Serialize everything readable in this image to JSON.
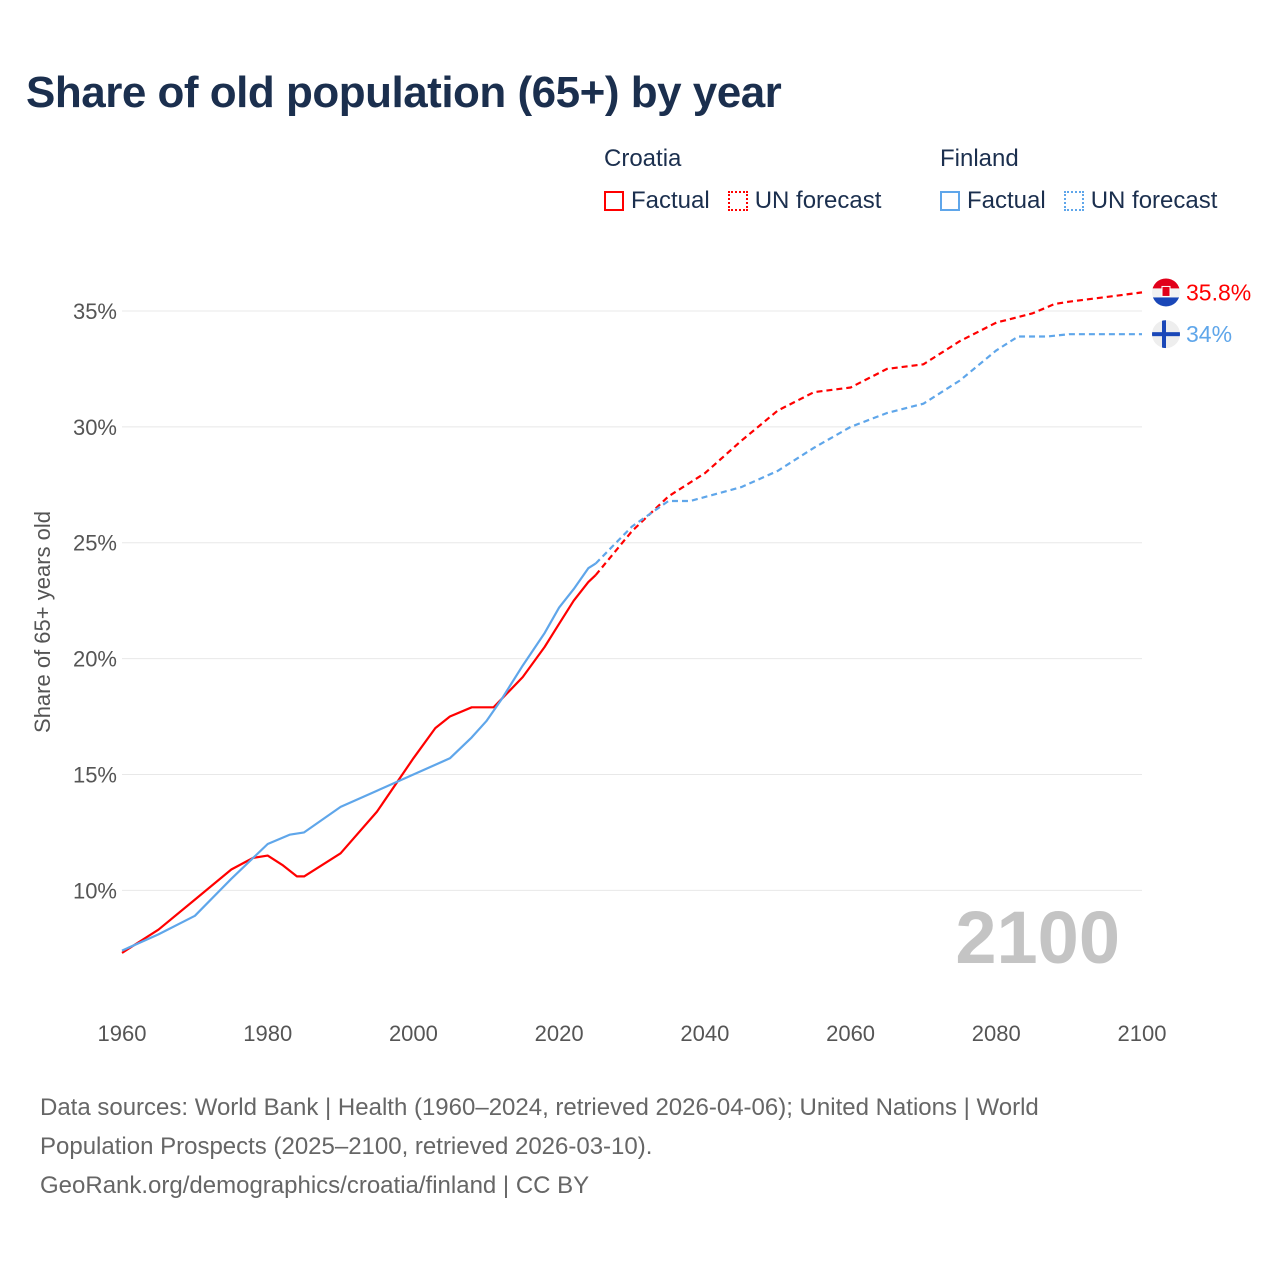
{
  "title": "Share of old population (65+) by year",
  "legend": {
    "groups": [
      {
        "name": "Croatia",
        "color": "#ff0000",
        "items": [
          {
            "label": "Factual",
            "style": "solid"
          },
          {
            "label": "UN forecast",
            "style": "dotted"
          }
        ]
      },
      {
        "name": "Finland",
        "color": "#5fa6ea",
        "items": [
          {
            "label": "Factual",
            "style": "solid"
          },
          {
            "label": "UN forecast",
            "style": "dotted"
          }
        ]
      }
    ]
  },
  "year_label": "2100",
  "footer": {
    "line1": "Data sources: World Bank | Health (1960–2024, retrieved 2026-04-06); United Nations | World",
    "line2": "Population Prospects (2025–2100, retrieved 2026-03-10).",
    "line3": "GeoRank.org/demographics/croatia/finland | CC BY"
  },
  "chart_data": {
    "type": "line",
    "title": "Share of old population (65+) by year",
    "xlabel": "",
    "ylabel": "Share of 65+ years old",
    "xlim": [
      1960,
      2100
    ],
    "ylim": [
      5.7,
      37.2
    ],
    "x_ticks": [
      "1960",
      "1980",
      "2000",
      "2020",
      "2040",
      "2060",
      "2080",
      "2100"
    ],
    "y_ticks": [
      {
        "value": 10,
        "label": "10%"
      },
      {
        "value": 15,
        "label": "15%"
      },
      {
        "value": 20,
        "label": "20%"
      },
      {
        "value": 25,
        "label": "25%"
      },
      {
        "value": 30,
        "label": "30%"
      },
      {
        "value": 35,
        "label": "35%"
      }
    ],
    "grid": true,
    "series": [
      {
        "name": "Croatia",
        "kind": "Factual",
        "color": "#ff0000",
        "dashed": false,
        "x": [
          1960,
          1965,
          1970,
          1975,
          1978,
          1980,
          1982,
          1984,
          1985,
          1990,
          1995,
          2000,
          2003,
          2005,
          2008,
          2011,
          2015,
          2018,
          2020,
          2022,
          2024,
          2025
        ],
        "y": [
          7.3,
          8.3,
          9.6,
          10.9,
          11.4,
          11.5,
          11.1,
          10.6,
          10.6,
          11.6,
          13.4,
          15.7,
          17.0,
          17.5,
          17.9,
          17.9,
          19.2,
          20.5,
          21.5,
          22.5,
          23.3,
          23.6
        ]
      },
      {
        "name": "Croatia",
        "kind": "UN forecast",
        "color": "#ff0000",
        "dashed": true,
        "x": [
          2025,
          2030,
          2035,
          2040,
          2045,
          2050,
          2055,
          2060,
          2065,
          2070,
          2075,
          2080,
          2085,
          2088,
          2090,
          2095,
          2100
        ],
        "y": [
          23.6,
          25.5,
          27.0,
          28.0,
          29.4,
          30.7,
          31.5,
          31.7,
          32.5,
          32.7,
          33.7,
          34.5,
          34.9,
          35.3,
          35.4,
          35.6,
          35.8
        ]
      },
      {
        "name": "Finland",
        "kind": "Factual",
        "color": "#5fa6ea",
        "dashed": false,
        "x": [
          1960,
          1965,
          1970,
          1975,
          1980,
          1983,
          1985,
          1990,
          1995,
          2000,
          2005,
          2008,
          2010,
          2012,
          2015,
          2018,
          2020,
          2022,
          2024,
          2025
        ],
        "y": [
          7.4,
          8.1,
          8.9,
          10.5,
          12.0,
          12.4,
          12.5,
          13.6,
          14.3,
          15.0,
          15.7,
          16.6,
          17.3,
          18.2,
          19.7,
          21.1,
          22.2,
          23.0,
          23.9,
          24.1
        ]
      },
      {
        "name": "Finland",
        "kind": "UN forecast",
        "color": "#5fa6ea",
        "dashed": true,
        "x": [
          2025,
          2030,
          2035,
          2038,
          2045,
          2050,
          2055,
          2060,
          2065,
          2070,
          2075,
          2080,
          2083,
          2087,
          2090,
          2100
        ],
        "y": [
          24.1,
          25.7,
          26.8,
          26.8,
          27.4,
          28.1,
          29.1,
          30.0,
          30.6,
          31.0,
          32.0,
          33.3,
          33.9,
          33.9,
          34.0,
          34.0
        ]
      }
    ],
    "end_labels": [
      {
        "name": "Croatia",
        "label": "35.8%",
        "value": 35.8,
        "color": "#ff0000"
      },
      {
        "name": "Finland",
        "label": "34%",
        "value": 34.0,
        "color": "#5fa6ea"
      }
    ]
  }
}
